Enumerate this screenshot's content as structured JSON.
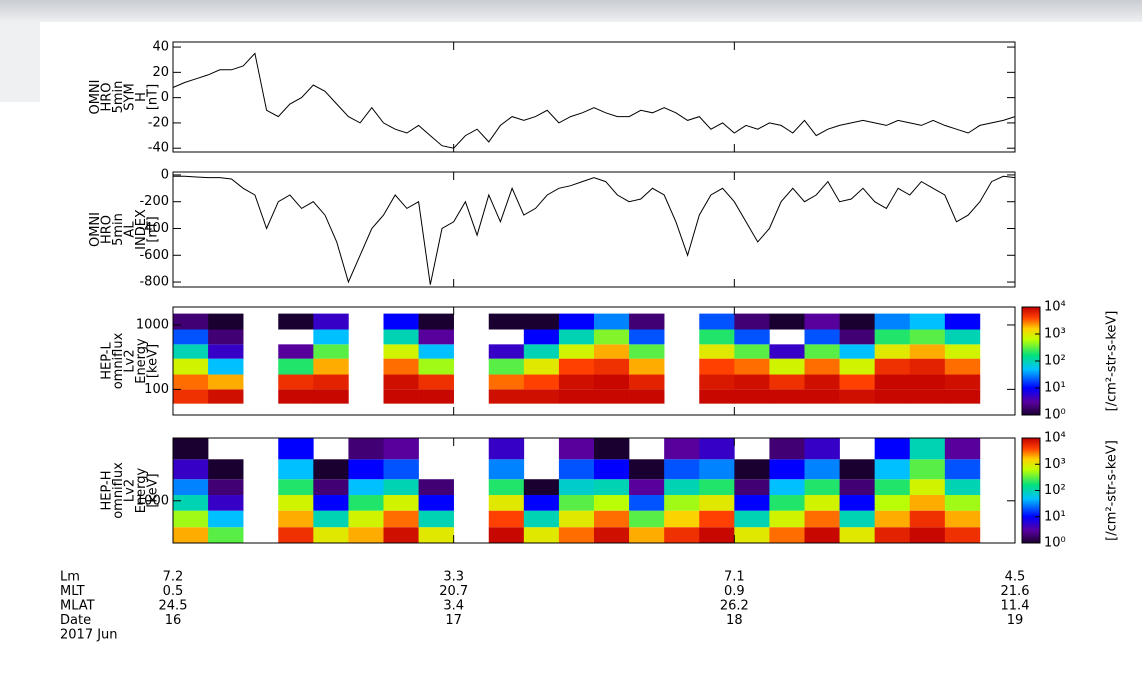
{
  "chart_data": [
    {
      "type": "line",
      "ylabel": [
        "OMNI",
        "HRO",
        "5min",
        "SYM",
        "H",
        "[nT]"
      ],
      "color": "#000000",
      "xlim": [
        0,
        72
      ],
      "xticks": [
        0,
        24,
        48,
        72
      ],
      "ylim": [
        -43,
        44
      ],
      "yticks": [
        -40,
        -20,
        0,
        20,
        40
      ],
      "x": [
        0,
        1,
        2,
        3,
        4,
        5,
        6,
        7,
        8,
        9,
        10,
        11,
        12,
        13,
        14,
        15,
        16,
        17,
        18,
        19,
        20,
        21,
        22,
        23,
        24,
        25,
        26,
        27,
        28,
        29,
        30,
        31,
        32,
        33,
        34,
        35,
        36,
        37,
        38,
        39,
        40,
        41,
        42,
        43,
        44,
        45,
        46,
        47,
        48,
        49,
        50,
        51,
        52,
        53,
        54,
        55,
        56,
        57,
        58,
        59,
        60,
        61,
        62,
        63,
        64,
        65,
        66,
        67,
        68,
        69,
        70,
        71,
        72
      ],
      "values": [
        8,
        12,
        15,
        18,
        22,
        22,
        25,
        35,
        -10,
        -15,
        -5,
        0,
        10,
        5,
        -5,
        -15,
        -20,
        -8,
        -20,
        -25,
        -28,
        -22,
        -30,
        -38,
        -40,
        -30,
        -25,
        -35,
        -22,
        -15,
        -18,
        -15,
        -10,
        -20,
        -15,
        -12,
        -8,
        -12,
        -15,
        -15,
        -10,
        -12,
        -8,
        -12,
        -18,
        -15,
        -25,
        -20,
        -28,
        -22,
        -25,
        -20,
        -22,
        -28,
        -18,
        -30,
        -25,
        -22,
        -20,
        -18,
        -20,
        -22,
        -18,
        -20,
        -22,
        -18,
        -22,
        -25,
        -28,
        -22,
        -20,
        -18,
        -15
      ]
    },
    {
      "type": "line",
      "ylabel": [
        "OMNI",
        "HRO",
        "5min",
        "AL",
        "INDEX",
        "[nT]"
      ],
      "color": "#000000",
      "xlim": [
        0,
        72
      ],
      "xticks": [
        0,
        24,
        48,
        72
      ],
      "ylim": [
        -837,
        22
      ],
      "yticks": [
        0,
        -200,
        -400,
        -600,
        -800
      ],
      "x": [
        0,
        1,
        2,
        3,
        4,
        5,
        6,
        7,
        8,
        9,
        10,
        11,
        12,
        13,
        14,
        15,
        16,
        17,
        18,
        19,
        20,
        21,
        22,
        23,
        24,
        25,
        26,
        27,
        28,
        29,
        30,
        31,
        32,
        33,
        34,
        35,
        36,
        37,
        38,
        39,
        40,
        41,
        42,
        43,
        44,
        45,
        46,
        47,
        48,
        49,
        50,
        51,
        52,
        53,
        54,
        55,
        56,
        57,
        58,
        59,
        60,
        61,
        62,
        63,
        64,
        65,
        66,
        67,
        68,
        69,
        70,
        71,
        72
      ],
      "values": [
        -10,
        -10,
        -15,
        -20,
        -20,
        -30,
        -100,
        -150,
        -400,
        -200,
        -150,
        -250,
        -200,
        -300,
        -500,
        -800,
        -600,
        -400,
        -300,
        -150,
        -250,
        -200,
        -820,
        -400,
        -350,
        -200,
        -450,
        -150,
        -350,
        -100,
        -300,
        -250,
        -150,
        -100,
        -80,
        -50,
        -20,
        -50,
        -150,
        -200,
        -180,
        -100,
        -150,
        -350,
        -600,
        -300,
        -150,
        -100,
        -200,
        -350,
        -500,
        -400,
        -200,
        -100,
        -200,
        -150,
        -50,
        -200,
        -180,
        -100,
        -200,
        -250,
        -100,
        -150,
        -50,
        -100,
        -150,
        -350,
        -300,
        -200,
        -50,
        -10,
        -20
      ]
    },
    {
      "type": "heatmap",
      "ylabel": [
        "HEP-L",
        "omniflux",
        "Lv2",
        "Energy",
        "[keV]"
      ],
      "ylog": true,
      "xlim": [
        0,
        72
      ],
      "xticks": [
        0,
        24,
        48,
        72
      ],
      "ylim": [
        40,
        1900
      ],
      "yticks": [
        100,
        1000
      ],
      "x_bins": [
        0,
        3,
        6,
        9,
        12,
        15,
        18,
        21,
        24,
        27,
        30,
        33,
        36,
        39,
        42,
        45,
        48,
        51,
        54,
        57,
        60,
        63,
        66,
        69,
        72
      ],
      "y_bins": [
        60,
        100,
        170,
        300,
        500,
        850,
        1500
      ],
      "zlim": [
        1,
        10000
      ],
      "zlog": true,
      "zlabel": "[/cm²-str-s-keV]",
      "zticks": [
        {
          "value": 1,
          "label": "10⁰"
        },
        {
          "value": 10,
          "label": "10¹"
        },
        {
          "value": 100,
          "label": "10²"
        },
        {
          "value": 1000,
          "label": "10³"
        },
        {
          "value": 10000,
          "label": "10⁴"
        }
      ],
      "z": [
        [
          5000,
          8000,
          null,
          9000,
          9000,
          null,
          9000,
          9000,
          null,
          8000,
          8000,
          9000,
          9000,
          9000,
          null,
          9000,
          9000,
          9000,
          9000,
          8000,
          9000,
          9000,
          9000,
          null
        ],
        [
          3000,
          2000,
          null,
          5000,
          6000,
          null,
          8000,
          5000,
          null,
          3000,
          4000,
          8000,
          9000,
          6000,
          null,
          7000,
          8000,
          5000,
          8000,
          4000,
          9000,
          9000,
          8000,
          null
        ],
        [
          800,
          50,
          null,
          200,
          2000,
          null,
          3000,
          500,
          null,
          300,
          1000,
          4000,
          5000,
          2000,
          null,
          4000,
          3000,
          800,
          3000,
          800,
          5000,
          6000,
          3000,
          null
        ],
        [
          100,
          5,
          null,
          3,
          300,
          null,
          800,
          50,
          null,
          5,
          100,
          800,
          2000,
          300,
          null,
          1000,
          300,
          5,
          300,
          50,
          1000,
          2000,
          800,
          null
        ],
        [
          20,
          2,
          null,
          null,
          50,
          null,
          100,
          3,
          null,
          null,
          10,
          100,
          400,
          20,
          null,
          200,
          20,
          null,
          20,
          2,
          200,
          300,
          100,
          null
        ],
        [
          2,
          1,
          null,
          1,
          5,
          null,
          10,
          1,
          null,
          1,
          1,
          10,
          30,
          2,
          null,
          20,
          2,
          1,
          3,
          1,
          30,
          50,
          10,
          null
        ]
      ]
    },
    {
      "type": "heatmap",
      "ylabel": [
        "HEP-H",
        "omniflux",
        "Lv2",
        "Energy",
        "[keV]"
      ],
      "ylog": true,
      "xlim": [
        0,
        72
      ],
      "xticks": [
        0,
        24,
        48,
        72
      ],
      "ylim": [
        700,
        1700
      ],
      "yticks": [
        1000
      ],
      "x_bins": [
        0,
        3,
        6,
        9,
        12,
        15,
        18,
        21,
        24,
        27,
        30,
        33,
        36,
        39,
        42,
        45,
        48,
        51,
        54,
        57,
        60,
        63,
        66,
        69,
        72
      ],
      "y_bins": [
        700,
        800,
        920,
        1050,
        1200,
        1420,
        1700
      ],
      "zlim": [
        1,
        10000
      ],
      "zlog": true,
      "zlabel": "[/cm²-str-s-keV]",
      "zticks": [
        {
          "value": 1,
          "label": "10⁰"
        },
        {
          "value": 10,
          "label": "10¹"
        },
        {
          "value": 100,
          "label": "10²"
        },
        {
          "value": 1000,
          "label": "10³"
        },
        {
          "value": 10000,
          "label": "10⁴"
        }
      ],
      "z": [
        [
          2000,
          300,
          null,
          5000,
          1000,
          2000,
          8000,
          1000,
          null,
          9000,
          1000,
          3000,
          8000,
          2000,
          5000,
          9000,
          1000,
          3000,
          9000,
          1000,
          6000,
          9000,
          5000,
          null
        ],
        [
          500,
          50,
          null,
          2000,
          100,
          800,
          3000,
          100,
          null,
          4000,
          100,
          1000,
          3000,
          300,
          1500,
          4000,
          100,
          800,
          3000,
          100,
          2000,
          5000,
          2000,
          null
        ],
        [
          100,
          5,
          null,
          800,
          10,
          200,
          800,
          10,
          null,
          1000,
          10,
          300,
          600,
          20,
          500,
          1000,
          10,
          200,
          800,
          10,
          600,
          2000,
          500,
          null
        ],
        [
          30,
          2,
          null,
          200,
          2,
          50,
          100,
          2,
          null,
          200,
          1,
          80,
          100,
          3,
          100,
          200,
          2,
          50,
          200,
          2,
          200,
          800,
          100,
          null
        ],
        [
          5,
          1,
          null,
          50,
          1,
          10,
          20,
          null,
          null,
          30,
          null,
          20,
          10,
          1,
          20,
          30,
          1,
          10,
          30,
          1,
          50,
          300,
          20,
          null
        ],
        [
          1,
          null,
          null,
          10,
          null,
          2,
          3,
          null,
          null,
          5,
          null,
          3,
          1,
          null,
          3,
          5,
          null,
          2,
          5,
          null,
          10,
          100,
          3,
          null
        ]
      ]
    }
  ],
  "ephemeris": {
    "x": [
      0,
      24,
      48,
      72
    ],
    "xlim": [
      0,
      72
    ],
    "rows": [
      {
        "label": "Lm",
        "values": [
          7.2,
          3.3,
          7.1,
          4.5
        ]
      },
      {
        "label": "MLT",
        "values": [
          0.5,
          20.7,
          0.9,
          21.6
        ]
      },
      {
        "label": "MLAT",
        "values": [
          24.5,
          3.4,
          26.2,
          11.4
        ]
      },
      {
        "label": "Date",
        "values": [
          16,
          17,
          18,
          19
        ]
      }
    ],
    "note": "2017 Jun"
  }
}
